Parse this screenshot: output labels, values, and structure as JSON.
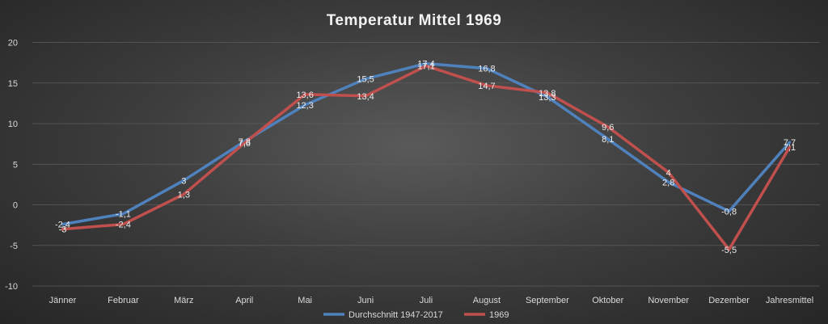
{
  "chart_data": {
    "type": "line",
    "title": "Temperatur Mittel 1969",
    "xlabel": "",
    "ylabel": "",
    "ylim": [
      -10,
      20
    ],
    "yticks": [
      20,
      15,
      10,
      5,
      0,
      -5,
      -10
    ],
    "grid": true,
    "legend_position": "bottom",
    "categories": [
      "Jänner",
      "Februar",
      "März",
      "April",
      "Mai",
      "Juni",
      "Juli",
      "August",
      "September",
      "Oktober",
      "November",
      "Dezember",
      "Jahresmittel"
    ],
    "series": [
      {
        "name": "Durchschnitt 1947-2017",
        "color": "#4f81bd",
        "values": [
          -2.4,
          -1.1,
          3,
          7.8,
          12.3,
          15.5,
          17.4,
          16.8,
          13.3,
          8.1,
          2.8,
          -0.8,
          7.7
        ],
        "labels": [
          "-2,4",
          "-1,1",
          "3",
          "7,8",
          "12,3",
          "15,5",
          "17,4",
          "16,8",
          "13,3",
          "8,1",
          "2,8",
          "-0,8",
          "7,7"
        ]
      },
      {
        "name": "1969",
        "color": "#c0504d",
        "values": [
          -3,
          -2.4,
          1.3,
          7.6,
          13.6,
          13.4,
          17.1,
          14.7,
          13.8,
          9.6,
          4,
          -5.5,
          7.1
        ],
        "labels": [
          "-3",
          "-2,4",
          "1,3",
          "7,6",
          "13,6",
          "13,4",
          "17,1",
          "14,7",
          "13,8",
          "9,6",
          "4",
          "-5,5",
          "7,1"
        ]
      }
    ]
  }
}
